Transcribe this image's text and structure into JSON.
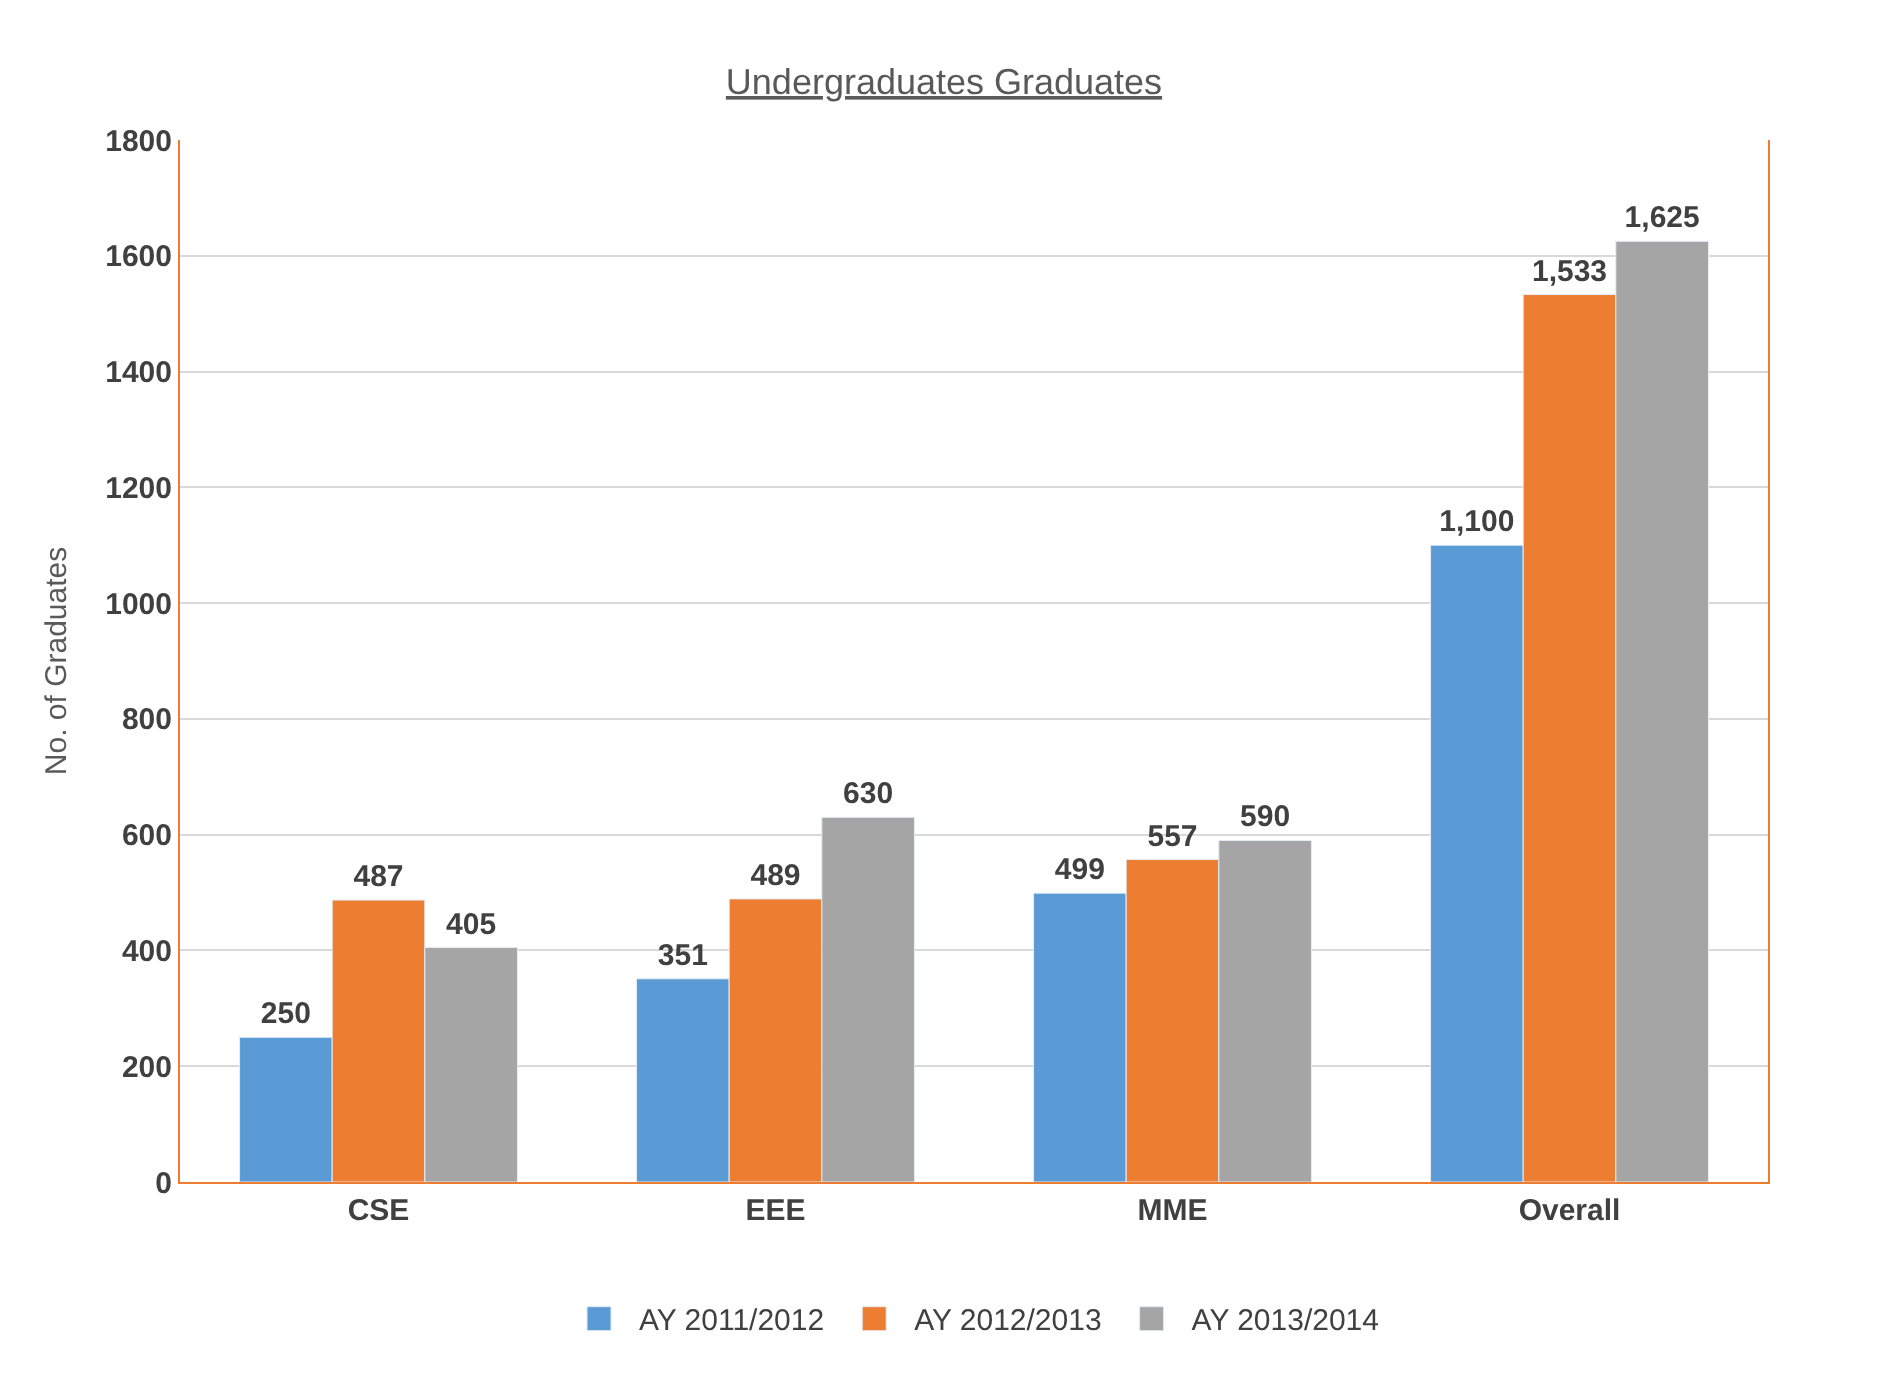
{
  "chart_data": {
    "type": "bar",
    "title": "Undergraduates Graduates",
    "ylabel": "No. of Graduates",
    "categories": [
      "CSE",
      "EEE",
      "MME",
      "Overall"
    ],
    "series": [
      {
        "name": "AY 2011/2012",
        "color": "#5b9bd5",
        "values": [
          250,
          351,
          499,
          1100
        ],
        "value_labels": [
          "250",
          "351",
          "499",
          "1,100"
        ]
      },
      {
        "name": "AY 2012/2013",
        "color": "#ed7d31",
        "values": [
          487,
          489,
          557,
          1533
        ],
        "value_labels": [
          "487",
          "489",
          "557",
          "1,533"
        ]
      },
      {
        "name": "AY 2013/2014",
        "color": "#a5a5a5",
        "values": [
          405,
          630,
          590,
          1625
        ],
        "value_labels": [
          "405",
          "630",
          "590",
          "1,625"
        ]
      }
    ],
    "ylim": [
      0,
      1800
    ],
    "yticks": [
      0,
      200,
      400,
      600,
      800,
      1000,
      1200,
      1400,
      1600,
      1800
    ],
    "grid": "y",
    "legend": "bottom"
  }
}
